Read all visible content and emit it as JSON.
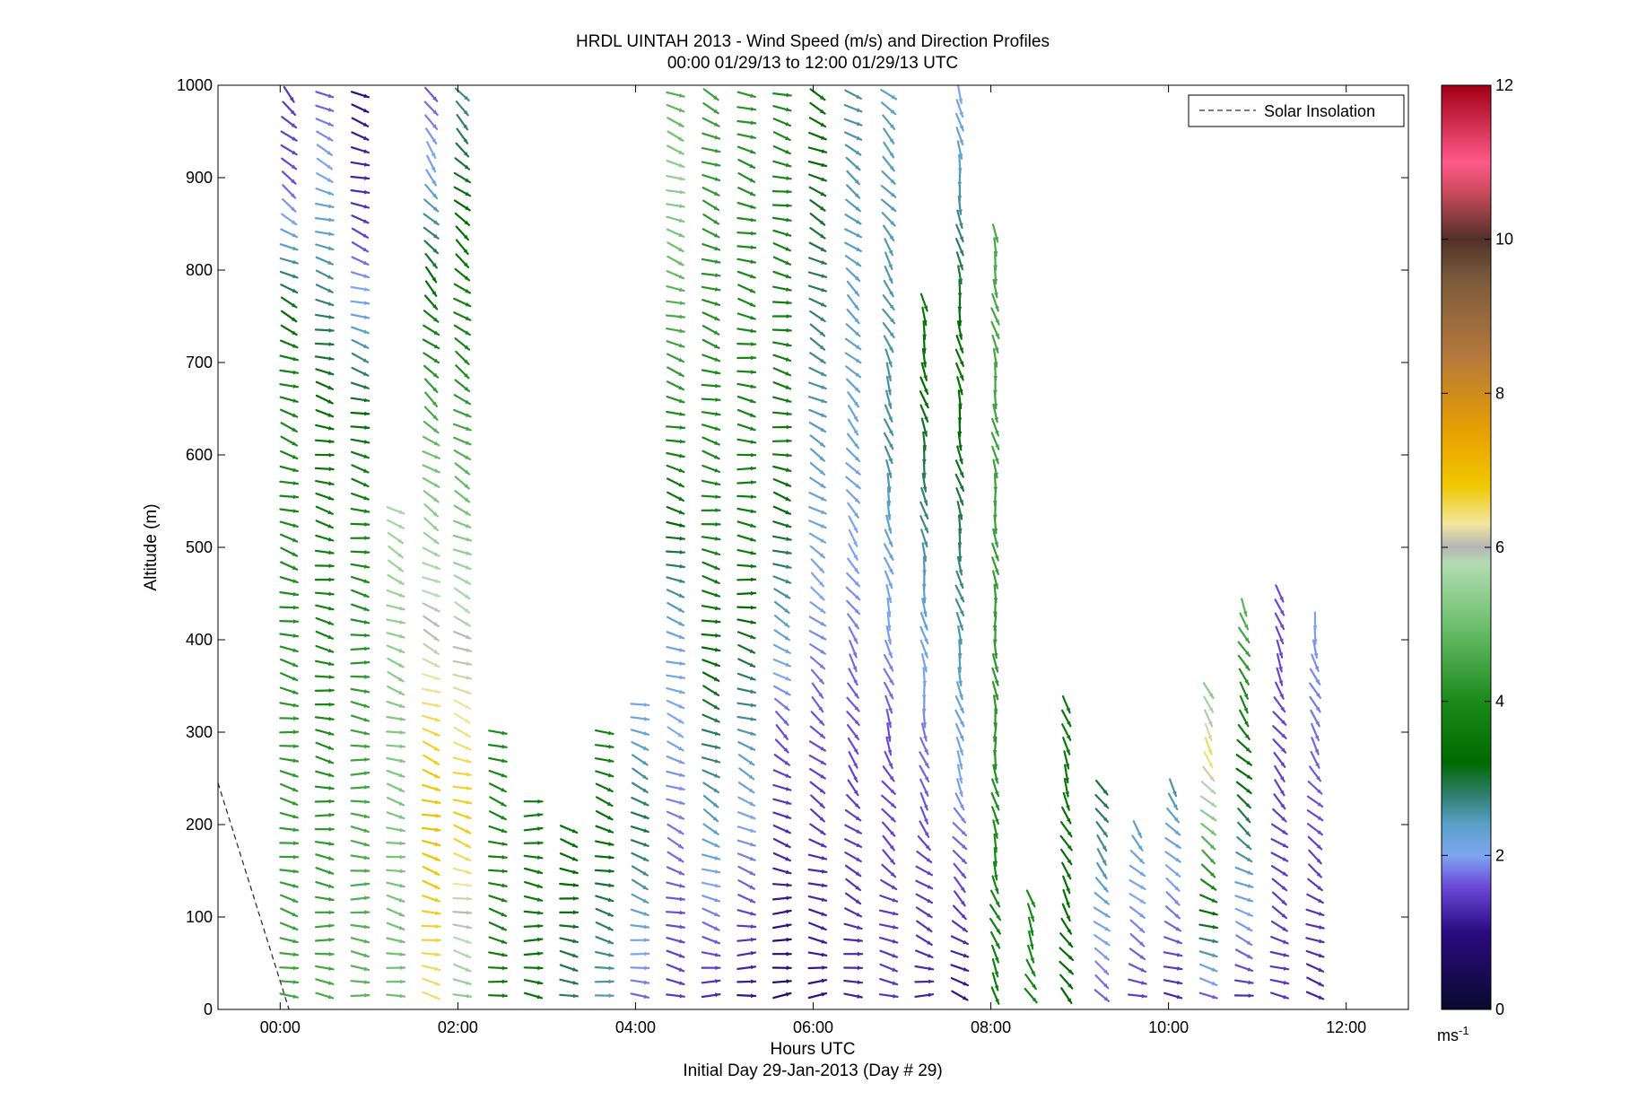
{
  "chart_data": {
    "type": "scatter",
    "title": "HRDL UINTAH 2013 - Wind Speed (m/s) and Direction Profiles",
    "subtitle": "00:00 01/29/13 to 12:00 01/29/13  UTC",
    "xlabel": "Hours UTC",
    "xlabel2": "Initial Day 29-Jan-2013 (Day # 29)",
    "ylabel": "Altitude (m)",
    "xlim": [
      -0.7,
      12.7
    ],
    "ylim": [
      0,
      1000
    ],
    "x_ticks": [
      {
        "value": 0,
        "label": "00:00"
      },
      {
        "value": 2,
        "label": "02:00"
      },
      {
        "value": 4,
        "label": "04:00"
      },
      {
        "value": 6,
        "label": "06:00"
      },
      {
        "value": 8,
        "label": "08:00"
      },
      {
        "value": 10,
        "label": "10:00"
      },
      {
        "value": 12,
        "label": "12:00"
      }
    ],
    "y_ticks": [
      {
        "value": 0,
        "label": "0"
      },
      {
        "value": 100,
        "label": "100"
      },
      {
        "value": 200,
        "label": "200"
      },
      {
        "value": 300,
        "label": "300"
      },
      {
        "value": 400,
        "label": "400"
      },
      {
        "value": 500,
        "label": "500"
      },
      {
        "value": 600,
        "label": "600"
      },
      {
        "value": 700,
        "label": "700"
      },
      {
        "value": 800,
        "label": "800"
      },
      {
        "value": 900,
        "label": "900"
      },
      {
        "value": 1000,
        "label": "1000"
      }
    ],
    "grid": false,
    "legend": {
      "position": "top-right",
      "entries": [
        {
          "label": "Solar Insolation",
          "style": "dashed",
          "color": "#333333"
        }
      ]
    },
    "solar_insolation_line": [
      {
        "x": -0.7,
        "y": 245
      },
      {
        "x": 0.1,
        "y": 0
      }
    ],
    "colorbar": {
      "label": "ms-1",
      "min": 0,
      "max": 12,
      "ticks": [
        {
          "value": 0,
          "label": "0"
        },
        {
          "value": 2,
          "label": "2"
        },
        {
          "value": 4,
          "label": "4"
        },
        {
          "value": 6,
          "label": "6"
        },
        {
          "value": 8,
          "label": "8"
        },
        {
          "value": 10,
          "label": "10"
        },
        {
          "value": 12,
          "label": "12"
        }
      ],
      "stops": [
        {
          "v": 0.0,
          "c": "#0a0a2e"
        },
        {
          "v": 1.0,
          "c": "#2a0a80"
        },
        {
          "v": 1.6,
          "c": "#6a4ad8"
        },
        {
          "v": 2.0,
          "c": "#7ea6f0"
        },
        {
          "v": 2.4,
          "c": "#5aa0c8"
        },
        {
          "v": 2.8,
          "c": "#2f7d6a"
        },
        {
          "v": 3.2,
          "c": "#006a00"
        },
        {
          "v": 4.0,
          "c": "#1a8a1a"
        },
        {
          "v": 5.0,
          "c": "#6ec06e"
        },
        {
          "v": 5.8,
          "c": "#b4dcb4"
        },
        {
          "v": 6.0,
          "c": "#b4b4b4"
        },
        {
          "v": 6.3,
          "c": "#f2e6a0"
        },
        {
          "v": 6.8,
          "c": "#f0c800"
        },
        {
          "v": 7.5,
          "c": "#e8a000"
        },
        {
          "v": 8.5,
          "c": "#b4783c"
        },
        {
          "v": 9.5,
          "c": "#7a5a3c"
        },
        {
          "v": 10.0,
          "c": "#503028"
        },
        {
          "v": 10.6,
          "c": "#c84a5a"
        },
        {
          "v": 11.0,
          "c": "#ff5a8a"
        },
        {
          "v": 12.0,
          "c": "#a00014"
        }
      ]
    },
    "profile_interval_hours": 0.2,
    "gate_spacing_m": 15,
    "arrow_length_hours": 0.2,
    "profiles": [
      {
        "t": 0.1,
        "top": 1000,
        "dir": [
          [
            0,
            285
          ],
          [
            300,
            280
          ],
          [
            700,
            290
          ],
          [
            850,
            300
          ],
          [
            1000,
            320
          ]
        ],
        "spd": [
          [
            0,
            4.5
          ],
          [
            300,
            4.2
          ],
          [
            700,
            3.8
          ],
          [
            900,
            1.6
          ],
          [
            1000,
            1.4
          ]
        ]
      },
      {
        "t": 0.5,
        "top": 1000,
        "dir": [
          [
            0,
            275
          ],
          [
            300,
            280
          ],
          [
            800,
            285
          ],
          [
            1000,
            300
          ]
        ],
        "spd": [
          [
            0,
            4.6
          ],
          [
            300,
            4.0
          ],
          [
            600,
            3.5
          ],
          [
            800,
            2.6
          ],
          [
            1000,
            1.6
          ]
        ]
      },
      {
        "t": 0.9,
        "top": 1000,
        "dir": [
          [
            0,
            275
          ],
          [
            300,
            275
          ],
          [
            800,
            290
          ],
          [
            1000,
            285
          ]
        ],
        "spd": [
          [
            0,
            4.8
          ],
          [
            300,
            4.4
          ],
          [
            600,
            3.6
          ],
          [
            850,
            1.4
          ],
          [
            1000,
            1.0
          ]
        ]
      },
      {
        "t": 1.3,
        "top": 540,
        "dir": [
          [
            0,
            280
          ],
          [
            300,
            285
          ],
          [
            540,
            300
          ]
        ],
        "spd": [
          [
            0,
            5.0
          ],
          [
            300,
            5.2
          ],
          [
            540,
            5.6
          ]
        ]
      },
      {
        "t": 1.7,
        "top": 1000,
        "dir": [
          [
            0,
            280
          ],
          [
            300,
            290
          ],
          [
            600,
            305
          ],
          [
            900,
            320
          ],
          [
            1000,
            330
          ]
        ],
        "spd": [
          [
            0,
            6.4
          ],
          [
            200,
            7.0
          ],
          [
            300,
            6.6
          ],
          [
            600,
            5.0
          ],
          [
            900,
            2.2
          ],
          [
            1000,
            1.6
          ]
        ]
      },
      {
        "t": 2.05,
        "top": 1000,
        "dir": [
          [
            0,
            280
          ],
          [
            300,
            290
          ],
          [
            600,
            300
          ],
          [
            1000,
            315
          ]
        ],
        "spd": [
          [
            0,
            5.2
          ],
          [
            200,
            6.8
          ],
          [
            400,
            6.0
          ],
          [
            700,
            4.0
          ],
          [
            1000,
            2.6
          ]
        ]
      },
      {
        "t": 2.45,
        "top": 300,
        "dir": [
          [
            0,
            280
          ],
          [
            300,
            290
          ]
        ],
        "spd": [
          [
            0,
            3.6
          ],
          [
            300,
            4.0
          ]
        ]
      },
      {
        "t": 2.85,
        "top": 230,
        "dir": [
          [
            0,
            275
          ],
          [
            230,
            275
          ]
        ],
        "spd": [
          [
            0,
            3.4
          ],
          [
            230,
            3.6
          ]
        ]
      },
      {
        "t": 3.25,
        "top": 200,
        "dir": [
          [
            0,
            275
          ],
          [
            200,
            285
          ]
        ],
        "spd": [
          [
            0,
            2.8
          ],
          [
            200,
            3.4
          ]
        ]
      },
      {
        "t": 3.65,
        "top": 310,
        "dir": [
          [
            0,
            280
          ],
          [
            300,
            290
          ]
        ],
        "spd": [
          [
            0,
            2.4
          ],
          [
            300,
            3.8
          ]
        ]
      },
      {
        "t": 4.05,
        "top": 340,
        "dir": [
          [
            0,
            270
          ],
          [
            200,
            300
          ],
          [
            340,
            285
          ]
        ],
        "spd": [
          [
            0,
            1.6
          ],
          [
            200,
            3.0
          ],
          [
            340,
            2.0
          ]
        ]
      },
      {
        "t": 4.45,
        "top": 1000,
        "dir": [
          [
            0,
            275
          ],
          [
            200,
            295
          ],
          [
            500,
            285
          ],
          [
            1000,
            290
          ]
        ],
        "spd": [
          [
            0,
            1.4
          ],
          [
            100,
            1.6
          ],
          [
            400,
            2.2
          ],
          [
            600,
            3.8
          ],
          [
            900,
            5.4
          ],
          [
            1000,
            4.6
          ]
        ]
      },
      {
        "t": 4.85,
        "top": 1000,
        "dir": [
          [
            0,
            270
          ],
          [
            200,
            300
          ],
          [
            500,
            280
          ],
          [
            1000,
            295
          ]
        ],
        "spd": [
          [
            0,
            1.2
          ],
          [
            200,
            2.4
          ],
          [
            500,
            3.8
          ],
          [
            1000,
            4.4
          ]
        ]
      },
      {
        "t": 5.25,
        "top": 1000,
        "dir": [
          [
            0,
            260
          ],
          [
            200,
            300
          ],
          [
            500,
            275
          ],
          [
            1000,
            290
          ]
        ],
        "spd": [
          [
            0,
            1.0
          ],
          [
            200,
            2.0
          ],
          [
            500,
            3.6
          ],
          [
            1000,
            4.2
          ]
        ]
      },
      {
        "t": 5.65,
        "top": 1000,
        "dir": [
          [
            0,
            250
          ],
          [
            300,
            310
          ],
          [
            600,
            280
          ],
          [
            1000,
            285
          ]
        ],
        "spd": [
          [
            0,
            0.8
          ],
          [
            300,
            1.6
          ],
          [
            600,
            3.6
          ],
          [
            1000,
            4.0
          ]
        ]
      },
      {
        "t": 6.05,
        "top": 1000,
        "dir": [
          [
            0,
            265
          ],
          [
            300,
            315
          ],
          [
            600,
            300
          ],
          [
            1000,
            295
          ]
        ],
        "spd": [
          [
            0,
            1.0
          ],
          [
            300,
            1.6
          ],
          [
            600,
            2.4
          ],
          [
            1000,
            3.4
          ]
        ]
      },
      {
        "t": 6.45,
        "top": 1000,
        "dir": [
          [
            0,
            270
          ],
          [
            300,
            330
          ],
          [
            600,
            320
          ],
          [
            1000,
            300
          ]
        ],
        "spd": [
          [
            0,
            1.2
          ],
          [
            300,
            1.6
          ],
          [
            600,
            2.2
          ],
          [
            1000,
            2.6
          ]
        ]
      },
      {
        "t": 6.85,
        "top": 1000,
        "dir": [
          [
            0,
            270
          ],
          [
            300,
            340
          ],
          [
            600,
            345
          ],
          [
            1000,
            310
          ]
        ],
        "spd": [
          [
            0,
            1.4
          ],
          [
            300,
            1.6
          ],
          [
            600,
            2.6
          ],
          [
            1000,
            2.4
          ]
        ]
      },
      {
        "t": 7.25,
        "top": 770,
        "dir": [
          [
            0,
            270
          ],
          [
            300,
            350
          ],
          [
            770,
            345
          ]
        ],
        "spd": [
          [
            0,
            1.2
          ],
          [
            300,
            1.8
          ],
          [
            770,
            3.6
          ]
        ]
      },
      {
        "t": 7.65,
        "top": 1000,
        "dir": [
          [
            0,
            290
          ],
          [
            300,
            345
          ],
          [
            1000,
            350
          ]
        ],
        "spd": [
          [
            0,
            1.0
          ],
          [
            300,
            2.2
          ],
          [
            700,
            3.4
          ],
          [
            1000,
            2.0
          ]
        ]
      },
      {
        "t": 8.05,
        "top": 850,
        "dir": [
          [
            0,
            330
          ],
          [
            300,
            355
          ],
          [
            850,
            345
          ]
        ],
        "spd": [
          [
            0,
            3.6
          ],
          [
            300,
            4.2
          ],
          [
            850,
            4.6
          ]
        ]
      },
      {
        "t": 8.45,
        "top": 120,
        "dir": [
          [
            0,
            330
          ],
          [
            120,
            340
          ]
        ],
        "spd": [
          [
            0,
            3.8
          ],
          [
            120,
            4.0
          ]
        ]
      },
      {
        "t": 8.85,
        "top": 330,
        "dir": [
          [
            0,
            320
          ],
          [
            330,
            345
          ]
        ],
        "spd": [
          [
            0,
            3.2
          ],
          [
            330,
            3.6
          ]
        ]
      },
      {
        "t": 9.25,
        "top": 240,
        "dir": [
          [
            0,
            300
          ],
          [
            240,
            330
          ]
        ],
        "spd": [
          [
            0,
            1.6
          ],
          [
            240,
            3.0
          ]
        ]
      },
      {
        "t": 9.65,
        "top": 200,
        "dir": [
          [
            0,
            285
          ],
          [
            200,
            325
          ]
        ],
        "spd": [
          [
            0,
            1.4
          ],
          [
            200,
            2.4
          ]
        ]
      },
      {
        "t": 10.05,
        "top": 250,
        "dir": [
          [
            0,
            280
          ],
          [
            250,
            330
          ]
        ],
        "spd": [
          [
            0,
            1.2
          ],
          [
            250,
            2.6
          ]
        ]
      },
      {
        "t": 10.45,
        "top": 350,
        "dir": [
          [
            0,
            275
          ],
          [
            350,
            340
          ]
        ],
        "spd": [
          [
            0,
            1.4
          ],
          [
            280,
            6.6
          ],
          [
            350,
            5.2
          ]
        ]
      },
      {
        "t": 10.85,
        "top": 440,
        "dir": [
          [
            0,
            280
          ],
          [
            440,
            340
          ]
        ],
        "spd": [
          [
            0,
            1.2
          ],
          [
            440,
            4.8
          ]
        ]
      },
      {
        "t": 11.25,
        "top": 450,
        "dir": [
          [
            0,
            285
          ],
          [
            450,
            345
          ]
        ],
        "spd": [
          [
            0,
            1.4
          ],
          [
            450,
            1.6
          ]
        ]
      },
      {
        "t": 11.65,
        "top": 430,
        "dir": [
          [
            0,
            280
          ],
          [
            430,
            350
          ]
        ],
        "spd": [
          [
            0,
            1.2
          ],
          [
            430,
            2.0
          ]
        ]
      }
    ]
  }
}
